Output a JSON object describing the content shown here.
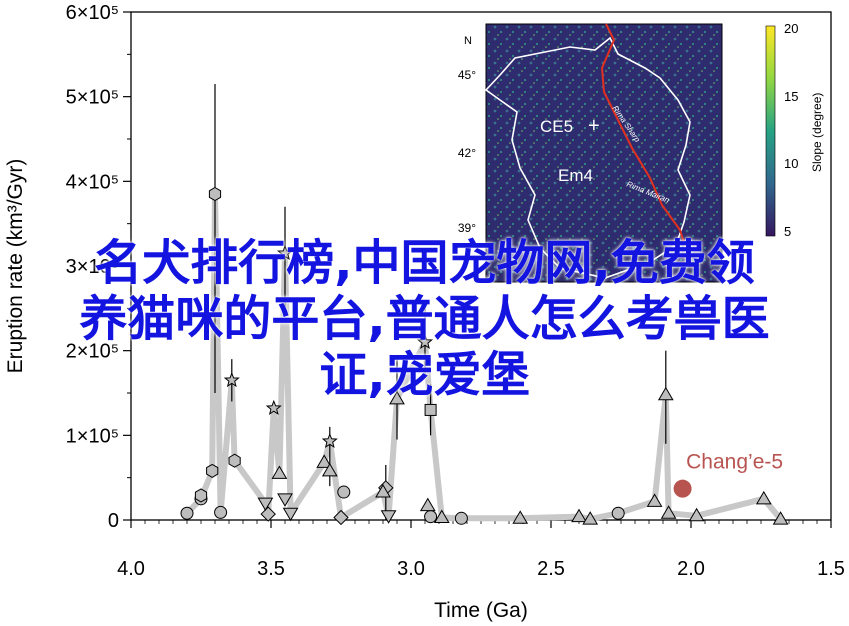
{
  "chart_data": {
    "type": "scatter",
    "xlabel": "Time (Ga)",
    "ylabel": "Eruption rate (km³/Gyr)",
    "xlim": [
      4.0,
      1.5
    ],
    "ylim": [
      0,
      600000
    ],
    "x_ticks": [
      4.0,
      3.5,
      3.0,
      2.5,
      2.0,
      1.5
    ],
    "x_tick_labels": [
      "4.0",
      "3.5",
      "3.0",
      "2.5",
      "2.0",
      "1.5"
    ],
    "y_ticks": [
      0,
      100000,
      200000,
      300000,
      400000,
      500000,
      600000
    ],
    "y_tick_labels": [
      "0",
      "1×10⁵",
      "2×10⁵",
      "3×10⁵",
      "4×10⁵",
      "5×10⁵",
      "6×10⁵"
    ],
    "trend_line_color": "#c8c8c8",
    "marker_color": "#bdbdbd",
    "series": [
      {
        "marker": "circle",
        "points": [
          {
            "x": 3.8,
            "y": 8000
          },
          {
            "x": 3.75,
            "y": 25000
          },
          {
            "x": 3.68,
            "y": 9000
          },
          {
            "x": 3.24,
            "y": 33000
          },
          {
            "x": 2.93,
            "y": 4000
          },
          {
            "x": 2.82,
            "y": 2000
          },
          {
            "x": 2.26,
            "y": 8000
          }
        ]
      },
      {
        "marker": "hexagon",
        "points": [
          {
            "x": 3.75,
            "y": 29000
          },
          {
            "x": 3.71,
            "y": 58000
          },
          {
            "x": 3.7,
            "y": 385000
          },
          {
            "x": 3.63,
            "y": 70000
          }
        ]
      },
      {
        "marker": "square",
        "points": [
          {
            "x": 2.93,
            "y": 130000
          }
        ]
      },
      {
        "marker": "diamond",
        "points": [
          {
            "x": 3.51,
            "y": 7000
          },
          {
            "x": 3.25,
            "y": 3000
          },
          {
            "x": 3.09,
            "y": 38000
          }
        ]
      },
      {
        "marker": "triangle-up",
        "points": [
          {
            "x": 3.47,
            "y": 55000
          },
          {
            "x": 3.31,
            "y": 68000
          },
          {
            "x": 3.29,
            "y": 58000
          },
          {
            "x": 3.1,
            "y": 33000
          },
          {
            "x": 3.05,
            "y": 143000
          },
          {
            "x": 2.94,
            "y": 17000
          },
          {
            "x": 2.89,
            "y": 3000
          },
          {
            "x": 2.61,
            "y": 2000
          },
          {
            "x": 2.4,
            "y": 4000
          },
          {
            "x": 2.36,
            "y": 1000
          },
          {
            "x": 2.13,
            "y": 22000
          },
          {
            "x": 2.09,
            "y": 148000
          },
          {
            "x": 2.08,
            "y": 8000
          },
          {
            "x": 1.98,
            "y": 5000
          },
          {
            "x": 1.74,
            "y": 25000
          },
          {
            "x": 1.68,
            "y": 1000
          }
        ]
      },
      {
        "marker": "triangle-down",
        "points": [
          {
            "x": 3.52,
            "y": 20000
          },
          {
            "x": 3.45,
            "y": 25000
          },
          {
            "x": 3.43,
            "y": 8000
          },
          {
            "x": 3.08,
            "y": 5000
          }
        ]
      },
      {
        "marker": "star",
        "points": [
          {
            "x": 3.64,
            "y": 165000
          },
          {
            "x": 3.49,
            "y": 132000
          },
          {
            "x": 3.45,
            "y": 315000
          },
          {
            "x": 3.29,
            "y": 93000
          },
          {
            "x": 2.95,
            "y": 210000
          }
        ]
      }
    ],
    "trend": [
      {
        "x": 3.8,
        "y": 8000
      },
      {
        "x": 3.75,
        "y": 25000
      },
      {
        "x": 3.71,
        "y": 58000
      },
      {
        "x": 3.7,
        "y": 385000
      },
      {
        "x": 3.68,
        "y": 9000
      },
      {
        "x": 3.64,
        "y": 165000
      },
      {
        "x": 3.63,
        "y": 70000
      },
      {
        "x": 3.52,
        "y": 20000
      },
      {
        "x": 3.51,
        "y": 7000
      },
      {
        "x": 3.49,
        "y": 132000
      },
      {
        "x": 3.47,
        "y": 55000
      },
      {
        "x": 3.45,
        "y": 315000
      },
      {
        "x": 3.43,
        "y": 8000
      },
      {
        "x": 3.31,
        "y": 68000
      },
      {
        "x": 3.29,
        "y": 93000
      },
      {
        "x": 3.25,
        "y": 3000
      },
      {
        "x": 3.1,
        "y": 33000
      },
      {
        "x": 3.08,
        "y": 5000
      },
      {
        "x": 3.05,
        "y": 143000
      },
      {
        "x": 2.95,
        "y": 210000
      },
      {
        "x": 2.93,
        "y": 130000
      },
      {
        "x": 2.89,
        "y": 3000
      },
      {
        "x": 2.82,
        "y": 2000
      },
      {
        "x": 2.61,
        "y": 2000
      },
      {
        "x": 2.4,
        "y": 4000
      },
      {
        "x": 2.36,
        "y": 1000
      },
      {
        "x": 2.26,
        "y": 8000
      },
      {
        "x": 2.13,
        "y": 22000
      },
      {
        "x": 2.09,
        "y": 148000
      },
      {
        "x": 2.08,
        "y": 8000
      },
      {
        "x": 1.98,
        "y": 5000
      },
      {
        "x": 1.74,
        "y": 25000
      },
      {
        "x": 1.68,
        "y": 1000
      }
    ],
    "errorbars": [
      {
        "x": 3.7,
        "y_low": 150000,
        "y_high": 515000
      },
      {
        "x": 3.45,
        "y_low": 250000,
        "y_high": 370000
      },
      {
        "x": 3.64,
        "y_low": 140000,
        "y_high": 190000
      },
      {
        "x": 3.05,
        "y_low": 95000,
        "y_high": 195000
      },
      {
        "x": 2.95,
        "y_low": 170000,
        "y_high": 250000
      },
      {
        "x": 2.09,
        "y_low": 90000,
        "y_high": 200000
      },
      {
        "x": 3.09,
        "y_low": 0,
        "y_high": 65000
      },
      {
        "x": 3.29,
        "y_low": 40000,
        "y_high": 110000
      },
      {
        "x": 2.93,
        "y_low": 100000,
        "y_high": 160000
      }
    ],
    "highlight": {
      "label": "Chang’e-5",
      "x": 2.03,
      "y": 37000,
      "color": "#b85450"
    },
    "inset": {
      "type": "heatmap-map",
      "north_label": "N",
      "lat_ticks": [
        "45°",
        "42°",
        "39°"
      ],
      "region_labels": [
        "CE5",
        "Em4"
      ],
      "channel_labels": [
        "Rima Sharp",
        "Rima Mairan"
      ],
      "colorbar_label": "Slope (degree)",
      "colorbar_ticks": [
        "20",
        "15",
        "10",
        "5"
      ],
      "colormap": [
        "#35175f",
        "#31688e",
        "#26a384",
        "#92d742",
        "#fde725"
      ]
    }
  },
  "overlay_text": {
    "line1": "名犬排行榜,中国宠物网,免费领",
    "line2": "养猫咪的平台,普通人怎么考兽医",
    "line3": "证,宠爱堡"
  }
}
